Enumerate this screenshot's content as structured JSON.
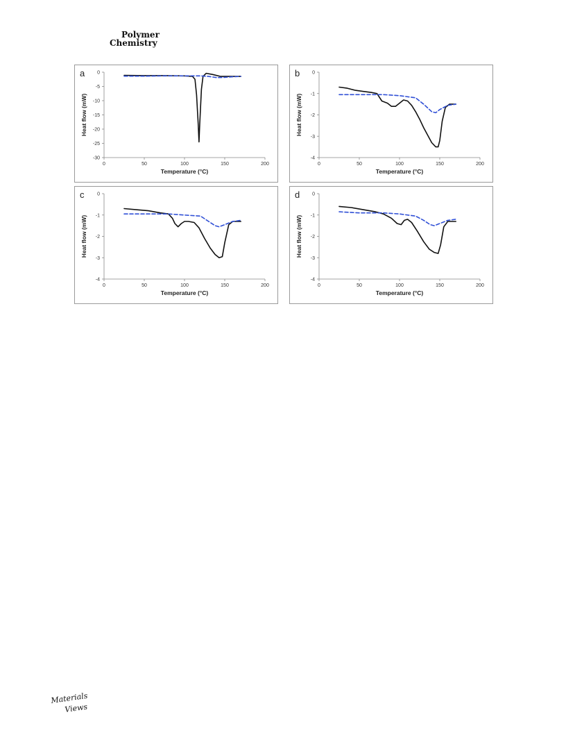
{
  "header": {
    "journal_line1": "Polymer",
    "journal_line2": "Chemistry"
  },
  "footer": {
    "logo_line1": "Materials",
    "logo_line2": "Views"
  },
  "colors": {
    "solid_series": "#111111",
    "dashed_series": "#2f4fd6",
    "panel_border": "#9a9a9a"
  },
  "chart_data": [
    {
      "panel_label": "a",
      "type": "line",
      "xlabel": "Temperature (°C)",
      "ylabel": "Heat flow (mW)",
      "xlim": [
        0,
        200
      ],
      "ylim": [
        -30,
        0
      ],
      "xticks": [
        0,
        50,
        100,
        150,
        200
      ],
      "yticks": [
        0,
        -5,
        -10,
        -15,
        -20,
        -25,
        -30
      ],
      "series": [
        {
          "style": "solid",
          "x": [
            25,
            50,
            75,
            100,
            110,
            113,
            115,
            117,
            118,
            119,
            121,
            123,
            127,
            135,
            145,
            160,
            170
          ],
          "y": [
            -1.1,
            -1.2,
            -1.2,
            -1.3,
            -1.5,
            -2.5,
            -8,
            -18,
            -24.5,
            -18,
            -6,
            -1.5,
            -0.4,
            -0.8,
            -1.5,
            -1.5,
            -1.5
          ]
        },
        {
          "style": "dashed",
          "x": [
            25,
            50,
            75,
            100,
            120,
            130,
            140,
            150,
            160,
            170
          ],
          "y": [
            -1.4,
            -1.4,
            -1.3,
            -1.3,
            -1.3,
            -1.5,
            -1.9,
            -1.8,
            -1.6,
            -1.5
          ]
        }
      ]
    },
    {
      "panel_label": "b",
      "type": "line",
      "xlabel": "Temperature (°C)",
      "ylabel": "Heat flow (mW)",
      "xlim": [
        0,
        200
      ],
      "ylim": [
        -4,
        0
      ],
      "xticks": [
        0,
        50,
        100,
        150,
        200
      ],
      "yticks": [
        0,
        -1,
        -2,
        -3,
        -4
      ],
      "series": [
        {
          "style": "solid",
          "x": [
            25,
            35,
            45,
            55,
            65,
            72,
            78,
            85,
            90,
            95,
            100,
            105,
            110,
            115,
            120,
            125,
            130,
            135,
            140,
            145,
            148,
            150,
            153,
            157,
            162,
            170
          ],
          "y": [
            -0.7,
            -0.75,
            -0.85,
            -0.9,
            -0.95,
            -1.0,
            -1.35,
            -1.45,
            -1.6,
            -1.6,
            -1.45,
            -1.3,
            -1.35,
            -1.55,
            -1.85,
            -2.2,
            -2.6,
            -2.95,
            -3.3,
            -3.5,
            -3.5,
            -3.2,
            -2.3,
            -1.65,
            -1.5,
            -1.5
          ]
        },
        {
          "style": "dashed",
          "x": [
            25,
            50,
            80,
            100,
            120,
            130,
            140,
            145,
            150,
            160,
            170
          ],
          "y": [
            -1.05,
            -1.05,
            -1.05,
            -1.1,
            -1.2,
            -1.5,
            -1.85,
            -1.9,
            -1.75,
            -1.55,
            -1.5
          ]
        }
      ]
    },
    {
      "panel_label": "c",
      "type": "line",
      "xlabel": "Temperature (°C)",
      "ylabel": "Heat flow (mW)",
      "xlim": [
        0,
        200
      ],
      "ylim": [
        -4,
        0
      ],
      "xticks": [
        0,
        50,
        100,
        150,
        200
      ],
      "yticks": [
        0,
        -1,
        -2,
        -3,
        -4
      ],
      "series": [
        {
          "style": "solid",
          "x": [
            25,
            40,
            55,
            70,
            80,
            85,
            88,
            92,
            96,
            100,
            105,
            112,
            118,
            125,
            132,
            138,
            143,
            147,
            150,
            155,
            160,
            170
          ],
          "y": [
            -0.7,
            -0.75,
            -0.8,
            -0.9,
            -0.95,
            -1.15,
            -1.4,
            -1.55,
            -1.4,
            -1.3,
            -1.3,
            -1.35,
            -1.6,
            -2.1,
            -2.55,
            -2.85,
            -3.0,
            -2.95,
            -2.3,
            -1.45,
            -1.3,
            -1.3
          ]
        },
        {
          "style": "dashed",
          "x": [
            25,
            50,
            80,
            100,
            120,
            130,
            138,
            143,
            150,
            160,
            170
          ],
          "y": [
            -0.95,
            -0.95,
            -0.95,
            -1.0,
            -1.05,
            -1.3,
            -1.5,
            -1.55,
            -1.45,
            -1.3,
            -1.25
          ]
        }
      ]
    },
    {
      "panel_label": "d",
      "type": "line",
      "xlabel": "Temperature (°C)",
      "ylabel": "Heat flow (mW)",
      "xlim": [
        0,
        200
      ],
      "ylim": [
        -4,
        0
      ],
      "xticks": [
        0,
        50,
        100,
        150,
        200
      ],
      "yticks": [
        0,
        -1,
        -2,
        -3,
        -4
      ],
      "series": [
        {
          "style": "solid",
          "x": [
            25,
            40,
            55,
            70,
            80,
            90,
            97,
            102,
            106,
            110,
            115,
            122,
            130,
            137,
            143,
            148,
            151,
            155,
            160,
            170
          ],
          "y": [
            -0.6,
            -0.65,
            -0.75,
            -0.85,
            -0.95,
            -1.15,
            -1.4,
            -1.45,
            -1.25,
            -1.2,
            -1.35,
            -1.75,
            -2.25,
            -2.6,
            -2.75,
            -2.8,
            -2.4,
            -1.55,
            -1.3,
            -1.3
          ]
        },
        {
          "style": "dashed",
          "x": [
            25,
            50,
            80,
            100,
            120,
            130,
            138,
            143,
            150,
            160,
            170
          ],
          "y": [
            -0.85,
            -0.9,
            -0.9,
            -0.95,
            -1.05,
            -1.25,
            -1.45,
            -1.5,
            -1.4,
            -1.25,
            -1.2
          ]
        }
      ]
    }
  ]
}
